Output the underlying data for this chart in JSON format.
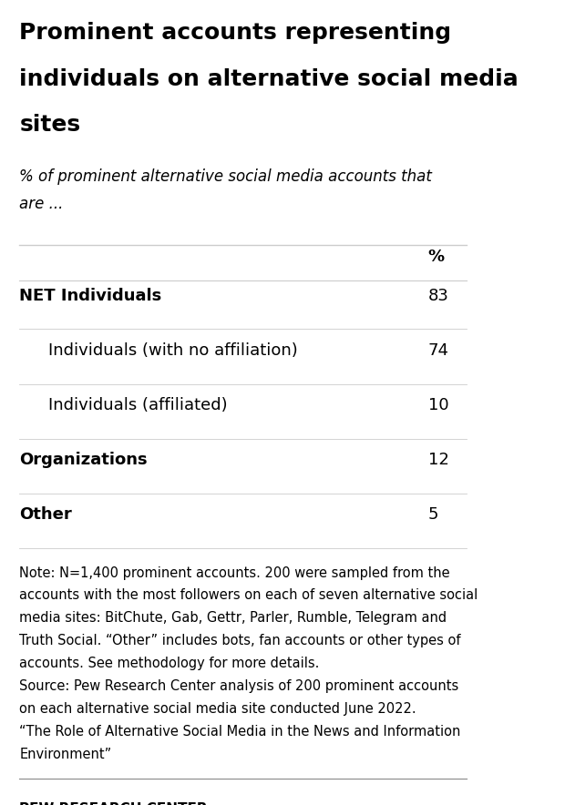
{
  "title_lines": [
    "Prominent accounts representing",
    "individuals on alternative social media",
    "sites"
  ],
  "subtitle_lines": [
    "% of prominent alternative social media accounts that",
    "are ..."
  ],
  "col_header": "%",
  "rows": [
    {
      "label": "NET Individuals",
      "value": "83",
      "indent": 0,
      "bold": true
    },
    {
      "label": "Individuals (with no affiliation)",
      "value": "74",
      "indent": 1,
      "bold": false
    },
    {
      "label": "Individuals (affiliated)",
      "value": "10",
      "indent": 1,
      "bold": false
    },
    {
      "label": "Organizations",
      "value": "12",
      "indent": 0,
      "bold": true
    },
    {
      "label": "Other",
      "value": "5",
      "indent": 0,
      "bold": true
    }
  ],
  "note_lines": [
    "Note: N=1,400 prominent accounts. 200 were sampled from the",
    "accounts with the most followers on each of seven alternative social",
    "media sites: BitChute, Gab, Gettr, Parler, Rumble, Telegram and",
    "Truth Social. “Other” includes bots, fan accounts or other types of",
    "accounts. See methodology for more details.",
    "Source: Pew Research Center analysis of 200 prominent accounts",
    "on each alternative social media site conducted June 2022.",
    "“The Role of Alternative Social Media in the News and Information",
    "Environment”"
  ],
  "footer": "PEW RESEARCH CENTER",
  "background_color": "#ffffff",
  "text_color": "#000000",
  "divider_color": "#cccccc",
  "footer_divider_color": "#888888",
  "title_fontsize": 18,
  "subtitle_fontsize": 12,
  "row_fontsize": 13,
  "note_fontsize": 10.5,
  "footer_fontsize": 11
}
